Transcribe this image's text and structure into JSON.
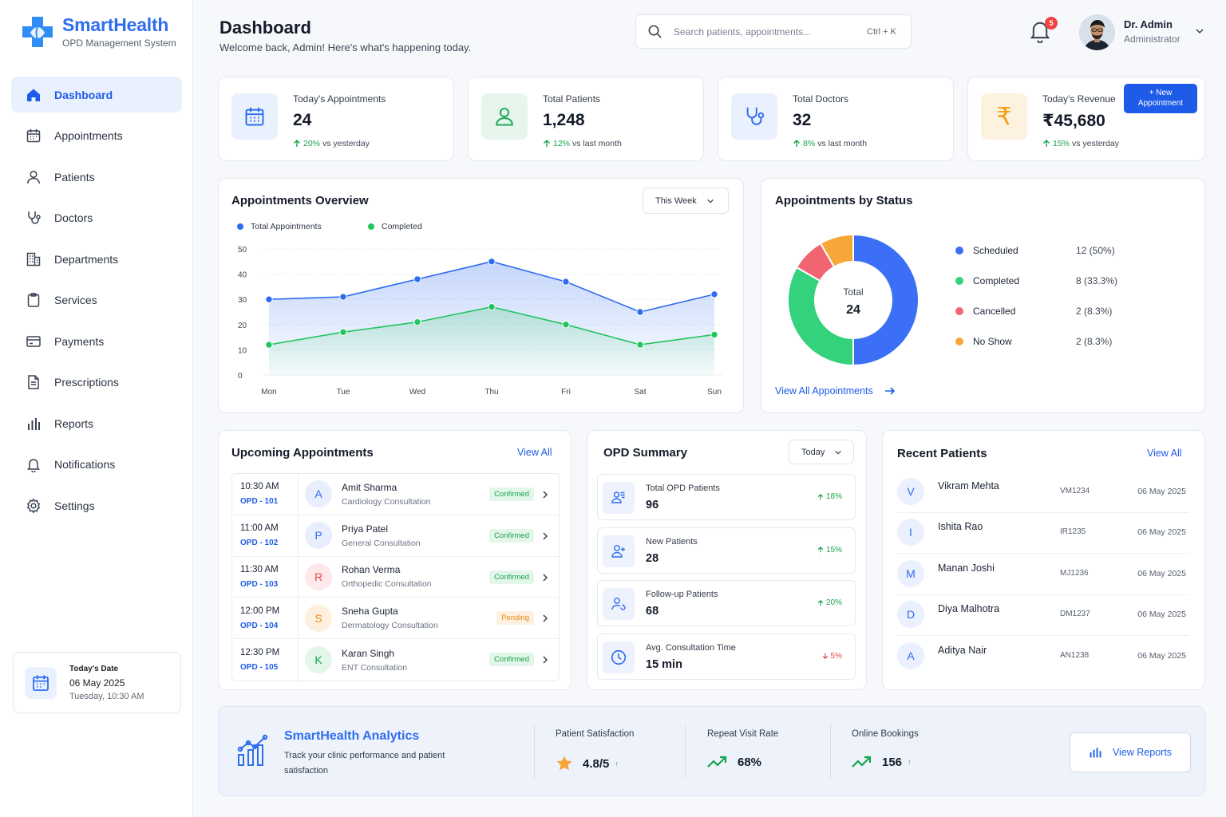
{
  "brand": {
    "name": "SmartHealth",
    "subtitle": "OPD Management System"
  },
  "sidebar": {
    "items": [
      {
        "label": "Dashboard",
        "icon": "home-icon",
        "active": true
      },
      {
        "label": "Appointments",
        "icon": "calendar-icon"
      },
      {
        "label": "Patients",
        "icon": "user-icon"
      },
      {
        "label": "Doctors",
        "icon": "stethoscope-icon"
      },
      {
        "label": "Departments",
        "icon": "building-icon"
      },
      {
        "label": "Services",
        "icon": "clipboard-icon"
      },
      {
        "label": "Payments",
        "icon": "card-icon"
      },
      {
        "label": "Prescriptions",
        "icon": "document-icon"
      },
      {
        "label": "Reports",
        "icon": "bar-chart-icon"
      },
      {
        "label": "Notifications",
        "icon": "bell-icon"
      },
      {
        "label": "Settings",
        "icon": "gear-icon"
      }
    ],
    "date_card": {
      "label": "Today's Date",
      "date": "06 May 2025",
      "time": "Tuesday, 10:30 AM"
    }
  },
  "header": {
    "title": "Dashboard",
    "subtitle": "Welcome back, Admin! Here's what's happening today.",
    "search_placeholder": "Search patients, appointments...",
    "search_shortcut": "Ctrl + K",
    "notification_count": "5",
    "user_name": "Dr. Admin",
    "user_role": "Administrator"
  },
  "stats": [
    {
      "label": "Today's Appointments",
      "value": "24",
      "change": "20%",
      "change_text": "vs yesterday",
      "color": "#2f6df0"
    },
    {
      "label": "Total Patients",
      "value": "1,248",
      "change": "12%",
      "change_text": "vs last month",
      "color": "#22c55e"
    },
    {
      "label": "Total Doctors",
      "value": "32",
      "change": "8%",
      "change_text": "vs last month",
      "color": "#2f6df0"
    },
    {
      "label": "Today's Revenue",
      "value": "₹45,680",
      "change": "15%",
      "change_text": "vs yesterday",
      "color": "#f59e0b"
    }
  ],
  "new_appointment_button": {
    "line1": "+ New",
    "line2": "Appointment"
  },
  "overview": {
    "title": "Appointments Overview",
    "filter": "This Week"
  },
  "chart_data": {
    "type": "line",
    "title": "Appointments Overview",
    "categories": [
      "Mon",
      "Tue",
      "Wed",
      "Thu",
      "Fri",
      "Sat",
      "Sun"
    ],
    "series": [
      {
        "name": "Total Appointments",
        "values": [
          30,
          31,
          38,
          45,
          37,
          25,
          32
        ],
        "color": "#2f6df0"
      },
      {
        "name": "Completed",
        "values": [
          12,
          17,
          21,
          27,
          20,
          12,
          16
        ],
        "color": "#22c55e"
      }
    ],
    "y_ticks": [
      "0",
      "10",
      "20",
      "30",
      "40",
      "50"
    ],
    "ylim": [
      0,
      50
    ],
    "grid": true,
    "legend": "top-left"
  },
  "status": {
    "title": "Appointments by Status",
    "center_label": "Total",
    "center_value": "24",
    "link": "View All Appointments",
    "items": [
      {
        "name": "Scheduled",
        "count": "12 (50%)",
        "value": 12,
        "color": "#3b6ff5"
      },
      {
        "name": "Completed",
        "count": "8 (33.3%)",
        "value": 8,
        "color": "#34d27c"
      },
      {
        "name": "Cancelled",
        "count": "2 (8.3%)",
        "value": 2,
        "color": "#f16572"
      },
      {
        "name": "No Show",
        "count": "2 (8.3%)",
        "value": 2,
        "color": "#f7a638"
      }
    ]
  },
  "upcoming": {
    "title": "Upcoming Appointments",
    "link": "View All",
    "rows": [
      {
        "time": "10:30 AM",
        "opd": "OPD - 101",
        "initial": "A",
        "name": "Amit Sharma",
        "service": "Cardiology Consultation",
        "status": "Confirmed",
        "tone": "ok",
        "bg": "#e8eefc",
        "fg": "#2f6df0"
      },
      {
        "time": "11:00 AM",
        "opd": "OPD - 102",
        "initial": "P",
        "name": "Priya Patel",
        "service": "General Consultation",
        "status": "Confirmed",
        "tone": "ok",
        "bg": "#e8eefc",
        "fg": "#2f6df0"
      },
      {
        "time": "11:30 AM",
        "opd": "OPD - 103",
        "initial": "R",
        "name": "Rohan Verma",
        "service": "Orthopedic Consultation",
        "status": "Confirmed",
        "tone": "ok",
        "bg": "#fde8ea",
        "fg": "#e5484d"
      },
      {
        "time": "12:00 PM",
        "opd": "OPD - 104",
        "initial": "S",
        "name": "Sneha Gupta",
        "service": "Dermatology Consultation",
        "status": "Pending",
        "tone": "pend",
        "bg": "#fdf0de",
        "fg": "#ea8a1a"
      },
      {
        "time": "12:30 PM",
        "opd": "OPD - 105",
        "initial": "K",
        "name": "Karan Singh",
        "service": "ENT Consultation",
        "status": "Confirmed",
        "tone": "ok",
        "bg": "#e3f6ea",
        "fg": "#17a34a"
      }
    ]
  },
  "opd": {
    "title": "OPD Summary",
    "filter": "Today",
    "rows": [
      {
        "label": "Total OPD Patients",
        "value": "96",
        "change": "18%",
        "direction": "up",
        "icon": "users-icon"
      },
      {
        "label": "New Patients",
        "value": "28",
        "change": "15%",
        "direction": "up",
        "icon": "user-plus-icon"
      },
      {
        "label": "Follow-up Patients",
        "value": "68",
        "change": "20%",
        "direction": "up",
        "icon": "users-refresh-icon"
      },
      {
        "label": "Avg. Consultation Time",
        "value": "15 min",
        "change": "5%",
        "direction": "down",
        "icon": "clock-icon"
      }
    ]
  },
  "recent": {
    "title": "Recent Patients",
    "link": "View All",
    "rows": [
      {
        "initial": "V",
        "name": "Vikram Mehta",
        "id": "VM1234",
        "date": "06 May 2025"
      },
      {
        "initial": "I",
        "name": "Ishita Rao",
        "id": "IR1235",
        "date": "06 May 2025"
      },
      {
        "initial": "M",
        "name": "Manan Joshi",
        "id": "MJ1236",
        "date": "06 May 2025"
      },
      {
        "initial": "D",
        "name": "Diya Malhotra",
        "id": "DM1237",
        "date": "06 May 2025"
      },
      {
        "initial": "A",
        "name": "Aditya Nair",
        "id": "AN1238",
        "date": "06 May 2025"
      }
    ]
  },
  "analytics": {
    "title": "SmartHealth Analytics",
    "subtitle": "Track your clinic performance and patient satisfaction",
    "metrics": [
      {
        "label": "Patient Satisfaction",
        "value": "4.8/5",
        "suffix": "↑",
        "icon": "star-icon"
      },
      {
        "label": "Repeat Visit Rate",
        "value": "68%",
        "suffix": "",
        "icon": "trend-up-icon"
      },
      {
        "label": "Online Bookings",
        "value": "156",
        "suffix": "↑",
        "icon": "trend-up-icon"
      }
    ],
    "button": "View Reports"
  }
}
